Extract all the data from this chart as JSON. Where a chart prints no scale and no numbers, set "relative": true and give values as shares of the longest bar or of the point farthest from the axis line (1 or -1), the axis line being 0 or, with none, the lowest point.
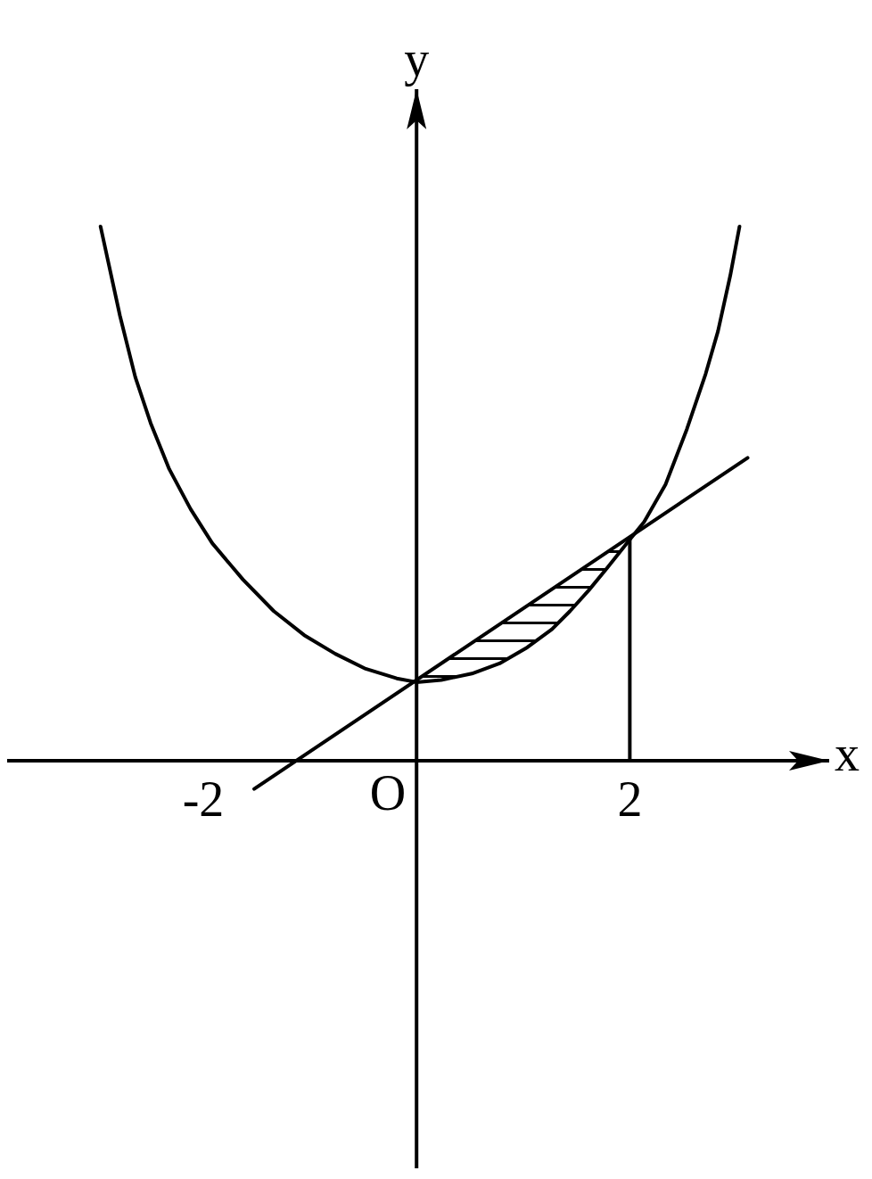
{
  "chart_data": {
    "type": "line",
    "xlabel": "x",
    "ylabel": "y",
    "relative": true,
    "xlim": [
      -3.84,
      3.87
    ],
    "xticks": [
      -2,
      2
    ],
    "annotations": [
      "O"
    ],
    "series": [
      {
        "color": "#000000",
        "x": [
          -2.964,
          -2.782,
          -2.638,
          -2.494,
          -2.32,
          -2.119,
          -1.916,
          -1.628,
          -1.339,
          -1.054,
          -0.762,
          -0.477,
          -0.186,
          0,
          0.23,
          0.519,
          0.778,
          1.038,
          1.269,
          1.439,
          1.615,
          1.788,
          2,
          2.134,
          2.335,
          2.536,
          2.711,
          2.827,
          2.942,
          3.029
        ],
        "values": [
          1,
          0.833,
          0.718,
          0.632,
          0.546,
          0.471,
          0.407,
          0.339,
          0.28,
          0.235,
          0.2,
          0.172,
          0.154,
          0.147,
          0.151,
          0.163,
          0.182,
          0.212,
          0.246,
          0.28,
          0.319,
          0.361,
          0.414,
          0.447,
          0.517,
          0.621,
          0.724,
          0.804,
          0.908,
          1
        ]
      },
      {
        "color": "#000000",
        "x": [
          -1.523,
          3.105
        ],
        "values": [
          -0.053,
          0.567
        ]
      },
      {
        "color": "#000000",
        "x": [
          2,
          2
        ],
        "values": [
          0,
          0.414
        ]
      }
    ],
    "legend": false,
    "marker": "none",
    "line_style": "solid"
  }
}
